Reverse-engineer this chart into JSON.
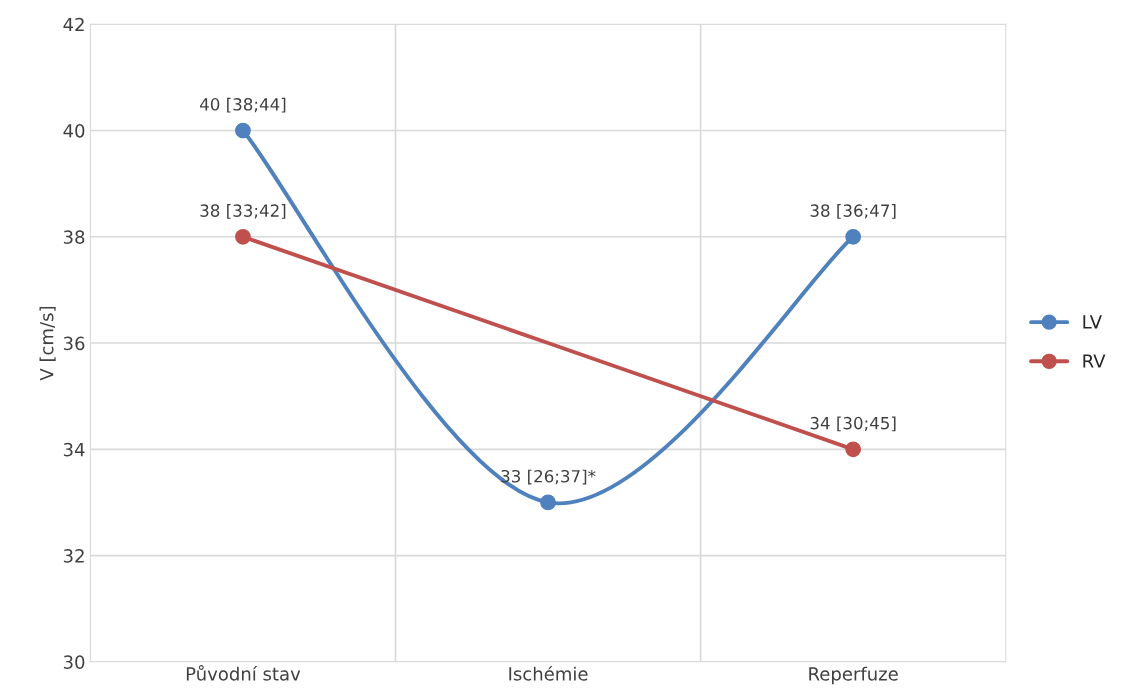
{
  "chart_data": {
    "type": "line",
    "ylabel": "V [cm/s]",
    "categories": [
      "Původní stav",
      "Ischémie",
      "Reperfuze"
    ],
    "series": [
      {
        "name": "LV",
        "color": "#4f81bd",
        "values": [
          40,
          33,
          38
        ],
        "value_labels": [
          "40 [38;44]",
          "33 [26;37]*",
          "38 [36;47]"
        ]
      },
      {
        "name": "RV",
        "color": "#c0504d",
        "values": [
          38,
          null,
          34
        ],
        "value_labels": [
          "38 [33;42]",
          null,
          "34 [30;45]"
        ]
      }
    ],
    "ylim": [
      30,
      42
    ],
    "yticks": [
      30,
      32,
      34,
      36,
      38,
      40,
      42
    ],
    "grid": true,
    "legend": "right",
    "marker": "circle",
    "line_style": "solid"
  }
}
